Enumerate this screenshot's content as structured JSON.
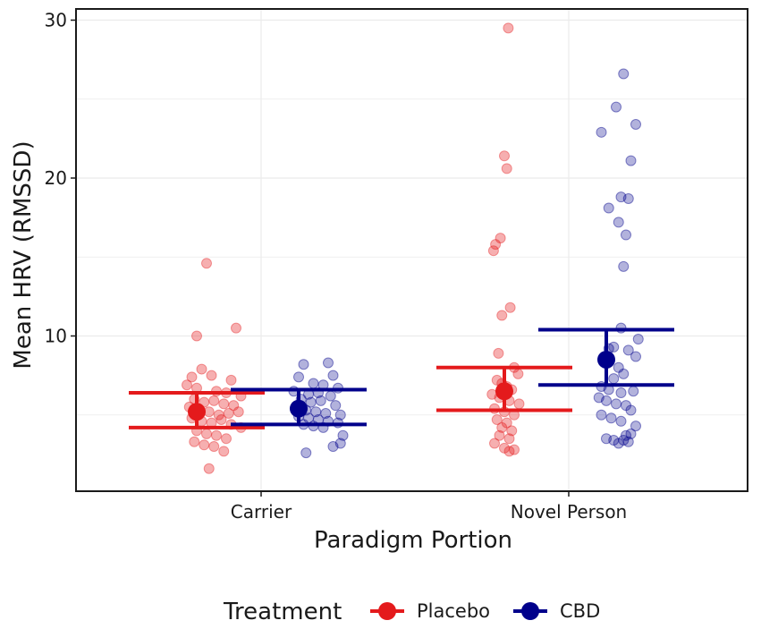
{
  "chart_data": {
    "type": "scatter",
    "title": "",
    "xlabel": "Paradigm Portion",
    "ylabel": "Mean HRV (RMSSD)",
    "categories": [
      "Carrier",
      "Novel Person"
    ],
    "ylim": [
      0,
      30
    ],
    "yticks": [
      10,
      20,
      30
    ],
    "grid": true,
    "legend": {
      "title": "Treatment",
      "placement": "bottom",
      "entries": [
        "Placebo",
        "CBD"
      ]
    },
    "series": [
      {
        "name": "Placebo",
        "color": "#E41A1C",
        "mean": [
          5.2,
          6.5
        ],
        "ci_low": [
          4.2,
          5.3
        ],
        "ci_high": [
          6.4,
          8.0
        ],
        "points": [
          [
            [
              5.2,
              14.6
            ],
            [
              5.0,
              10.0
            ],
            [
              5.8,
              10.5
            ],
            [
              4.9,
              7.4
            ],
            [
              5.1,
              7.9
            ],
            [
              5.3,
              7.5
            ],
            [
              5.7,
              7.2
            ],
            [
              4.8,
              6.9
            ],
            [
              5.0,
              6.7
            ],
            [
              5.4,
              6.5
            ],
            [
              5.6,
              6.4
            ],
            [
              5.9,
              6.2
            ],
            [
              4.95,
              6.0
            ],
            [
              5.15,
              5.8
            ],
            [
              5.35,
              5.9
            ],
            [
              5.55,
              5.7
            ],
            [
              5.75,
              5.6
            ],
            [
              4.85,
              5.5
            ],
            [
              5.05,
              5.3
            ],
            [
              5.25,
              5.2
            ],
            [
              5.45,
              5.0
            ],
            [
              5.65,
              5.1
            ],
            [
              5.85,
              5.2
            ],
            [
              4.9,
              4.8
            ],
            [
              5.1,
              4.6
            ],
            [
              5.3,
              4.5
            ],
            [
              5.5,
              4.7
            ],
            [
              5.7,
              4.4
            ],
            [
              5.9,
              4.2
            ],
            [
              5.0,
              4.0
            ],
            [
              5.2,
              3.8
            ],
            [
              5.4,
              3.7
            ],
            [
              5.6,
              3.5
            ],
            [
              4.95,
              3.3
            ],
            [
              5.15,
              3.1
            ],
            [
              5.35,
              3.0
            ],
            [
              5.55,
              2.7
            ],
            [
              5.25,
              1.6
            ]
          ],
          [
            [
              5.08,
              29.5
            ],
            [
              5.0,
              21.4
            ],
            [
              5.05,
              20.6
            ],
            [
              4.92,
              16.2
            ],
            [
              4.82,
              15.8
            ],
            [
              4.78,
              15.4
            ],
            [
              4.95,
              11.3
            ],
            [
              5.12,
              11.8
            ],
            [
              4.88,
              8.9
            ],
            [
              5.2,
              8.0
            ],
            [
              5.28,
              7.6
            ],
            [
              4.85,
              7.2
            ],
            [
              4.95,
              7.0
            ],
            [
              5.05,
              6.8
            ],
            [
              5.15,
              6.6
            ],
            [
              4.75,
              6.3
            ],
            [
              4.9,
              6.1
            ],
            [
              5.1,
              5.9
            ],
            [
              5.3,
              5.7
            ],
            [
              4.8,
              5.4
            ],
            [
              5.0,
              5.2
            ],
            [
              5.2,
              5.0
            ],
            [
              4.85,
              4.7
            ],
            [
              5.05,
              4.5
            ],
            [
              4.95,
              4.2
            ],
            [
              5.15,
              4.0
            ],
            [
              4.9,
              3.7
            ],
            [
              5.1,
              3.5
            ],
            [
              4.8,
              3.2
            ],
            [
              5.0,
              2.9
            ],
            [
              5.2,
              2.8
            ],
            [
              5.1,
              2.7
            ]
          ]
        ]
      },
      {
        "name": "CBD",
        "color": "#00008B",
        "mean": [
          5.4,
          8.5
        ],
        "ci_low": [
          4.4,
          6.9
        ],
        "ci_high": [
          6.6,
          10.4
        ],
        "points": [
          [
            [
              5.1,
              8.2
            ],
            [
              5.6,
              8.3
            ],
            [
              5.7,
              7.5
            ],
            [
              5.0,
              7.4
            ],
            [
              5.3,
              7.0
            ],
            [
              5.5,
              6.9
            ],
            [
              5.8,
              6.7
            ],
            [
              4.9,
              6.5
            ],
            [
              5.2,
              6.3
            ],
            [
              5.4,
              6.4
            ],
            [
              5.65,
              6.2
            ],
            [
              5.05,
              6.0
            ],
            [
              5.25,
              5.8
            ],
            [
              5.45,
              5.9
            ],
            [
              5.75,
              5.6
            ],
            [
              4.95,
              5.5
            ],
            [
              5.15,
              5.3
            ],
            [
              5.35,
              5.2
            ],
            [
              5.55,
              5.1
            ],
            [
              5.85,
              5.0
            ],
            [
              5.0,
              4.9
            ],
            [
              5.2,
              4.8
            ],
            [
              5.4,
              4.7
            ],
            [
              5.6,
              4.6
            ],
            [
              5.8,
              4.5
            ],
            [
              5.1,
              4.4
            ],
            [
              5.3,
              4.3
            ],
            [
              5.5,
              4.2
            ],
            [
              5.9,
              3.7
            ],
            [
              5.7,
              3.0
            ],
            [
              5.85,
              3.2
            ],
            [
              5.15,
              2.6
            ]
          ],
          [
            [
              5.35,
              26.6
            ],
            [
              5.2,
              24.5
            ],
            [
              5.6,
              23.4
            ],
            [
              4.9,
              22.9
            ],
            [
              5.5,
              21.1
            ],
            [
              5.05,
              18.1
            ],
            [
              5.3,
              18.8
            ],
            [
              5.45,
              18.7
            ],
            [
              5.25,
              17.2
            ],
            [
              5.4,
              16.4
            ],
            [
              5.35,
              14.4
            ],
            [
              5.3,
              10.5
            ],
            [
              5.65,
              9.8
            ],
            [
              5.05,
              9.2
            ],
            [
              5.15,
              9.3
            ],
            [
              5.45,
              9.1
            ],
            [
              5.6,
              8.7
            ],
            [
              4.95,
              8.4
            ],
            [
              5.25,
              8.0
            ],
            [
              5.35,
              7.6
            ],
            [
              5.15,
              7.3
            ],
            [
              4.9,
              6.8
            ],
            [
              5.05,
              6.6
            ],
            [
              5.3,
              6.4
            ],
            [
              5.55,
              6.5
            ],
            [
              4.85,
              6.1
            ],
            [
              5.0,
              5.9
            ],
            [
              5.2,
              5.7
            ],
            [
              5.4,
              5.6
            ],
            [
              5.5,
              5.3
            ],
            [
              4.9,
              5.0
            ],
            [
              5.1,
              4.8
            ],
            [
              5.3,
              4.6
            ],
            [
              5.6,
              4.3
            ],
            [
              5.5,
              3.8
            ],
            [
              5.0,
              3.5
            ],
            [
              5.15,
              3.4
            ],
            [
              5.25,
              3.2
            ],
            [
              5.35,
              3.4
            ],
            [
              5.45,
              3.3
            ],
            [
              5.4,
              3.7
            ]
          ]
        ]
      }
    ]
  }
}
